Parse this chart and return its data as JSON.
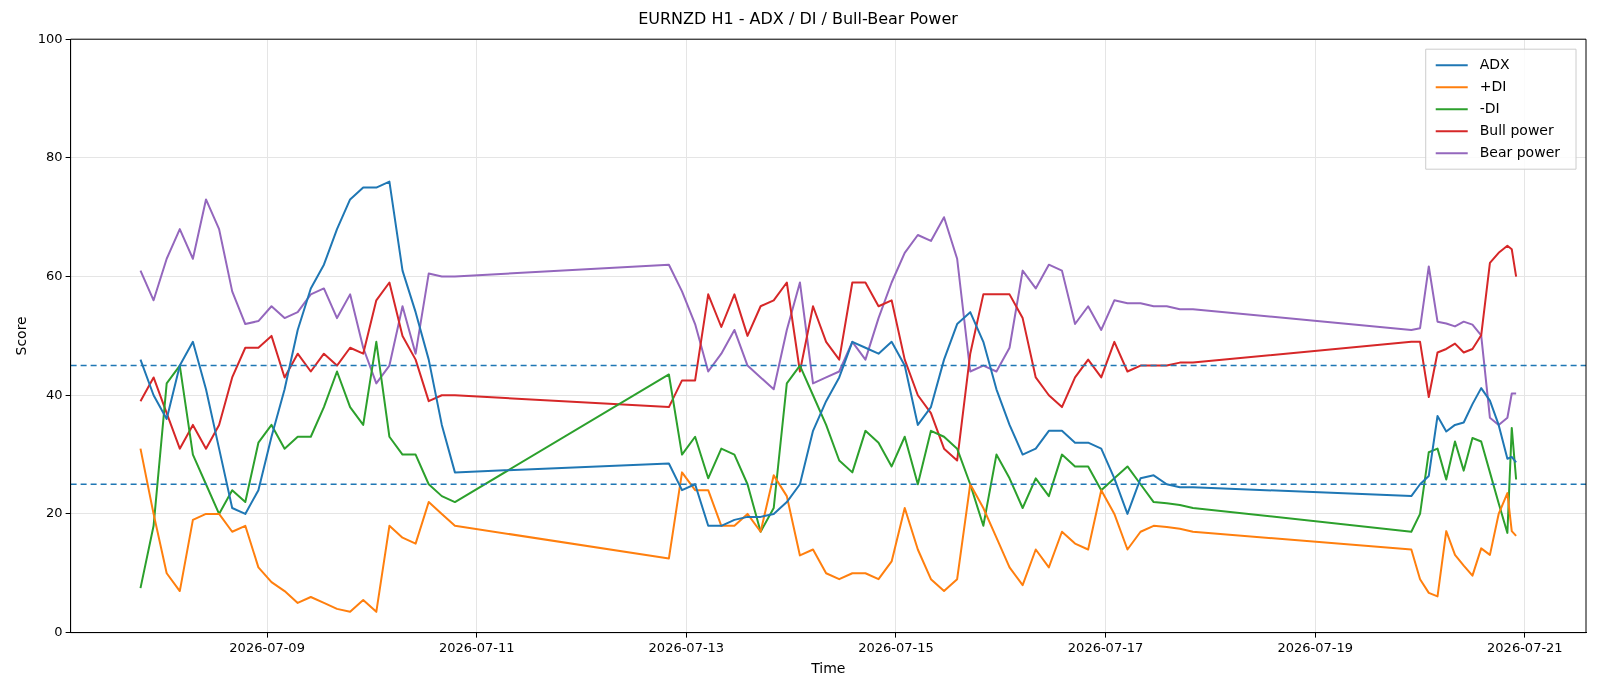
{
  "chart_data": {
    "type": "line",
    "title": "EURNZD H1 - ADX / DI / Bull-Bear Power",
    "xlabel": "Time",
    "ylabel": "Score",
    "x": [
      "2026-07-07T19:00",
      "2026-07-07T22:00",
      "2026-07-08T01:00",
      "2026-07-08T04:00",
      "2026-07-08T07:00",
      "2026-07-08T10:00",
      "2026-07-08T13:00",
      "2026-07-08T16:00",
      "2026-07-08T19:00",
      "2026-07-08T22:00",
      "2026-07-09T01:00",
      "2026-07-09T04:00",
      "2026-07-09T07:00",
      "2026-07-09T10:00",
      "2026-07-09T13:00",
      "2026-07-09T16:00",
      "2026-07-09T19:00",
      "2026-07-09T22:00",
      "2026-07-10T01:00",
      "2026-07-10T04:00",
      "2026-07-10T07:00",
      "2026-07-10T10:00",
      "2026-07-10T13:00",
      "2026-07-10T16:00",
      "2026-07-10T19:00",
      "2026-07-12T20:00",
      "2026-07-12T23:00",
      "2026-07-13T02:00",
      "2026-07-13T05:00",
      "2026-07-13T08:00",
      "2026-07-13T11:00",
      "2026-07-13T14:00",
      "2026-07-13T17:00",
      "2026-07-13T20:00",
      "2026-07-13T23:00",
      "2026-07-14T02:00",
      "2026-07-14T05:00",
      "2026-07-14T08:00",
      "2026-07-14T11:00",
      "2026-07-14T14:00",
      "2026-07-14T17:00",
      "2026-07-14T20:00",
      "2026-07-14T23:00",
      "2026-07-15T02:00",
      "2026-07-15T05:00",
      "2026-07-15T08:00",
      "2026-07-15T11:00",
      "2026-07-15T14:00",
      "2026-07-15T17:00",
      "2026-07-15T20:00",
      "2026-07-15T23:00",
      "2026-07-16T02:00",
      "2026-07-16T05:00",
      "2026-07-16T08:00",
      "2026-07-16T11:00",
      "2026-07-16T14:00",
      "2026-07-16T17:00",
      "2026-07-16T20:00",
      "2026-07-16T23:00",
      "2026-07-17T02:00",
      "2026-07-17T05:00",
      "2026-07-17T08:00",
      "2026-07-17T11:00",
      "2026-07-17T14:00",
      "2026-07-17T17:00",
      "2026-07-17T20:00",
      "2026-07-19T22:00",
      "2026-07-20T00:00",
      "2026-07-20T02:00",
      "2026-07-20T04:00",
      "2026-07-20T06:00",
      "2026-07-20T08:00",
      "2026-07-20T10:00",
      "2026-07-20T12:00",
      "2026-07-20T14:00",
      "2026-07-20T16:00",
      "2026-07-20T18:00",
      "2026-07-20T20:00",
      "2026-07-20T21:00",
      "2026-07-20T22:00"
    ],
    "series": [
      {
        "name": "ADX",
        "color": "#1f77b4",
        "values": [
          46,
          40,
          36,
          45,
          49,
          41,
          31,
          21,
          20,
          24,
          33,
          41,
          51,
          58,
          62,
          68,
          73,
          75,
          75,
          76,
          61,
          54,
          46,
          35,
          27,
          28.5,
          24,
          25,
          18,
          18,
          19,
          19.5,
          19.5,
          20,
          22,
          25,
          34,
          39,
          43,
          49,
          48,
          47,
          49,
          45,
          35,
          38,
          46,
          52,
          54,
          49,
          41,
          35,
          30,
          31,
          34,
          34,
          32,
          32,
          31,
          26,
          20,
          26,
          26.5,
          25,
          24.5,
          24.5,
          23,
          25,
          26.4,
          36.5,
          33.9,
          35,
          35.4,
          38.5,
          41.2,
          39.1,
          35,
          29.3,
          29.6,
          28.7
        ]
      },
      {
        "name": "+DI",
        "color": "#ff7f0e",
        "values": [
          31,
          20,
          10,
          7,
          19,
          20,
          20,
          17,
          18,
          11,
          8.5,
          7,
          5,
          6,
          5,
          4,
          3.5,
          5.5,
          3.5,
          18,
          16,
          15,
          22,
          20,
          18,
          12.5,
          27,
          24,
          24,
          18,
          18,
          20,
          17,
          26.5,
          23,
          13,
          14,
          10,
          9,
          10,
          10,
          9,
          12,
          21,
          14,
          9,
          7,
          9,
          25,
          21,
          16,
          11,
          8,
          14,
          11,
          17,
          15,
          14,
          24,
          20,
          14,
          17,
          18,
          17.8,
          17.5,
          17,
          14,
          9,
          6.7,
          6.1,
          17.1,
          13.1,
          11.3,
          9.6,
          14.2,
          13.1,
          20,
          23.5,
          17.1,
          16.3
        ]
      },
      {
        "name": "-DI",
        "color": "#2ca02c",
        "values": [
          7.5,
          18,
          42,
          45,
          30,
          25,
          20,
          24,
          22,
          32,
          35,
          31,
          33,
          33,
          38,
          44,
          38,
          35,
          49,
          33,
          30,
          30,
          25,
          23,
          22,
          43.5,
          30,
          33,
          26,
          31,
          30,
          25,
          17,
          21,
          42,
          45,
          40,
          35,
          29,
          27,
          34,
          32,
          28,
          33,
          25,
          34,
          33,
          31,
          25,
          18,
          30,
          26,
          21,
          26,
          23,
          30,
          28,
          28,
          24,
          26,
          28,
          25,
          22,
          21.8,
          21.5,
          21,
          17,
          20,
          30.4,
          31,
          25.8,
          32.2,
          27.3,
          32.8,
          32.2,
          27,
          21.8,
          16.8,
          34.5,
          25.8
        ]
      },
      {
        "name": "Bull power",
        "color": "#d62728",
        "values": [
          39,
          43,
          37,
          31,
          35,
          31,
          35,
          43,
          48,
          48,
          50,
          43,
          47,
          44,
          47,
          45,
          48,
          47,
          56,
          59,
          50,
          46,
          39,
          40,
          40,
          38,
          42.5,
          42.5,
          57,
          51.5,
          57,
          50,
          55,
          56,
          59,
          44,
          55,
          49,
          46,
          59,
          59,
          55,
          56,
          46,
          40,
          37,
          31,
          29,
          47,
          57,
          57,
          57,
          53,
          43,
          40,
          38,
          43,
          46,
          43,
          49,
          44,
          45,
          45,
          45,
          45.5,
          45.5,
          49,
          49,
          39.7,
          47.2,
          47.8,
          48.7,
          47.2,
          47.8,
          50.1,
          62.3,
          64,
          65.2,
          64.6,
          60
        ]
      },
      {
        "name": "Bear power",
        "color": "#9467bd",
        "values": [
          61,
          56,
          63,
          68,
          63,
          73,
          68,
          57.5,
          52,
          52.5,
          55,
          53,
          54,
          57,
          58,
          53,
          57,
          48,
          42,
          45,
          55,
          47,
          60.5,
          60,
          60,
          62,
          57.5,
          52,
          44,
          47,
          51,
          45,
          43,
          41,
          51,
          59,
          42,
          43,
          44,
          49,
          46,
          53,
          59,
          64,
          67,
          66,
          70,
          63,
          44,
          45,
          44,
          48,
          61,
          58,
          62,
          61,
          52,
          55,
          51,
          56,
          55.5,
          55.5,
          55,
          55,
          54.5,
          54.5,
          51,
          51.3,
          61.7,
          52.4,
          52.1,
          51.6,
          52.4,
          51.9,
          50.1,
          36.2,
          35,
          36.2,
          40.3,
          40.3
        ]
      }
    ],
    "xlim": [
      "2026-07-07T03:00",
      "2026-07-21T14:00"
    ],
    "xticks": [
      "2026-07-09",
      "2026-07-11",
      "2026-07-13",
      "2026-07-15",
      "2026-07-17",
      "2026-07-19",
      "2026-07-21"
    ],
    "ylim": [
      0,
      100
    ],
    "yticks": [
      0,
      20,
      40,
      60,
      80,
      100
    ],
    "ref_lines": [
      {
        "axis": "y",
        "value": 45,
        "color": "#1f77b4",
        "line_style": "dashed"
      },
      {
        "axis": "y",
        "value": 25,
        "color": "#1f77b4",
        "line_style": "dashed"
      }
    ],
    "grid": true,
    "legend": "top right",
    "marker": "none",
    "line_style": "solid"
  }
}
